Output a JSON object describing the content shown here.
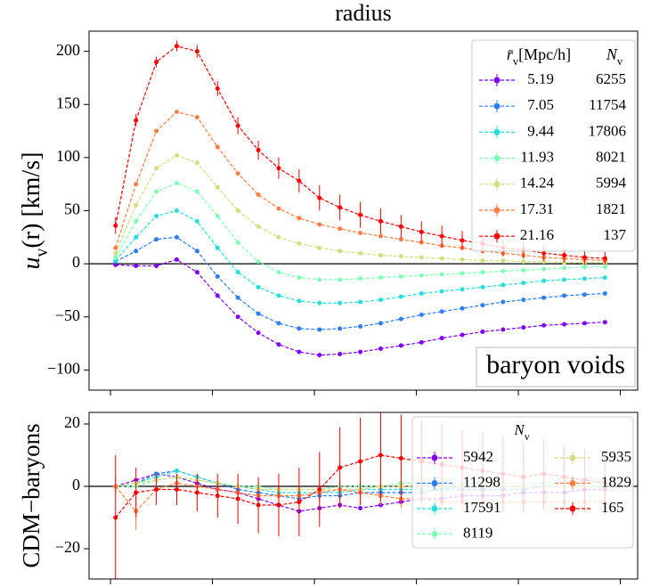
{
  "chart_data": [
    {
      "type": "line",
      "title": "radius",
      "y_label": [
        "u",
        "v",
        "(r) [km/s]"
      ],
      "legend_header": [
        [
          "r̄",
          "v",
          "[Mpc/h]"
        ],
        [
          "N",
          "v"
        ]
      ],
      "annotation": "baryon voids",
      "x": [
        0.05,
        0.25,
        0.45,
        0.65,
        0.85,
        1.05,
        1.25,
        1.45,
        1.65,
        1.85,
        2.05,
        2.25,
        2.45,
        2.65,
        2.85,
        3.05,
        3.25,
        3.45,
        3.65,
        3.85,
        4.05,
        4.25,
        4.45,
        4.65,
        4.85
      ],
      "xlim": [
        -0.21,
        5.17
      ],
      "xticks": [
        0,
        1,
        2,
        3,
        4,
        5
      ],
      "ylim": [
        -119,
        219
      ],
      "yticks": [
        {
          "value": -100,
          "label": "−100"
        },
        {
          "value": -50,
          "label": "−50"
        },
        0,
        50,
        100,
        150,
        200
      ],
      "series": [
        {
          "name": "5.19",
          "count": 6255,
          "color": "#8000ff",
          "values": [
            -1,
            -2,
            -2,
            4,
            -8,
            -30,
            -50,
            -65,
            -76,
            -83,
            -86,
            -85,
            -83,
            -80,
            -77,
            -74,
            -70,
            -67,
            -64,
            -62,
            -60,
            -58,
            -57,
            -56,
            -55
          ]
        },
        {
          "name": "7.05",
          "count": 11754,
          "color": "#2c7ef7",
          "values": [
            2,
            12,
            23,
            25,
            12,
            -12,
            -32,
            -47,
            -56,
            -61,
            -62,
            -61,
            -59,
            -56,
            -52,
            -48,
            -45,
            -42,
            -39,
            -36,
            -34,
            -32,
            -30,
            -29,
            -28
          ]
        },
        {
          "name": "9.44",
          "count": 17806,
          "color": "#2adddd",
          "values": [
            3,
            25,
            45,
            50,
            40,
            15,
            -8,
            -22,
            -30,
            -35,
            -37,
            -37,
            -36,
            -34,
            -31,
            -28,
            -26,
            -24,
            -22,
            -20,
            -18,
            -16,
            -15,
            -14,
            -13
          ]
        },
        {
          "name": "11.93",
          "count": 8021,
          "color": "#80ffb4",
          "values": [
            6,
            40,
            68,
            76,
            68,
            45,
            20,
            2,
            -8,
            -13,
            -15,
            -15,
            -14,
            -13,
            -12,
            -11,
            -10,
            -9,
            -8,
            -7,
            -6,
            -5,
            -4,
            -3,
            -3
          ]
        },
        {
          "name": "14.24",
          "count": 5994,
          "color": "#d4dd80",
          "values": [
            10,
            55,
            90,
            102,
            95,
            72,
            50,
            35,
            25,
            19,
            15,
            12,
            10,
            8,
            7,
            6,
            5,
            4,
            3,
            3,
            2,
            2,
            1,
            1,
            1
          ]
        },
        {
          "name": "17.31",
          "count": 1821,
          "color": "#ff7e41",
          "values": [
            15,
            75,
            125,
            143,
            138,
            110,
            85,
            65,
            52,
            43,
            37,
            33,
            29,
            26,
            23,
            20,
            17,
            15,
            12,
            10,
            8,
            6,
            5,
            4,
            3
          ]
        },
        {
          "name": "21.16",
          "count": 137,
          "color": "#ff0000",
          "values": [
            36,
            135,
            190,
            205,
            200,
            165,
            130,
            107,
            90,
            78,
            62,
            53,
            46,
            40,
            35,
            30,
            26,
            22,
            19,
            15,
            13,
            10,
            8,
            6,
            5
          ],
          "errors": [
            8,
            6,
            5,
            5,
            6,
            7,
            8,
            9,
            10,
            11,
            12,
            12,
            12,
            12,
            11,
            10,
            10,
            9,
            9,
            8,
            8,
            7,
            7,
            7,
            6
          ]
        }
      ]
    },
    {
      "type": "line",
      "y_label": "CDM−baryons",
      "legend_header": [
        [
          "N",
          "v"
        ]
      ],
      "x": [
        0.05,
        0.25,
        0.45,
        0.65,
        0.85,
        1.05,
        1.25,
        1.45,
        1.65,
        1.85,
        2.05,
        2.25,
        2.45,
        2.65,
        2.85,
        3.05,
        3.25,
        3.45,
        3.65,
        3.85,
        4.05,
        4.25,
        4.45,
        4.65,
        4.85
      ],
      "xlim": [
        -0.21,
        5.17
      ],
      "xticks": [
        0,
        1,
        2,
        3,
        4,
        5
      ],
      "ylim": [
        -29.7,
        23.7
      ],
      "yticks": [
        {
          "value": -20,
          "label": "−20"
        },
        0,
        20
      ],
      "series": [
        {
          "name": "5942",
          "color": "#8000ff",
          "values": [
            0,
            2,
            4,
            3,
            1,
            -1,
            -2,
            -4,
            -6,
            -8,
            -7,
            -6,
            -7,
            -6,
            -5,
            -4,
            -4,
            -3,
            -3,
            -3,
            -2,
            -2,
            -2,
            -1,
            -1
          ]
        },
        {
          "name": "11298",
          "color": "#2c7ef7",
          "values": [
            0,
            1,
            4,
            5,
            3,
            1,
            -1,
            -2,
            -3,
            -4,
            -3,
            -3,
            -2,
            -2,
            -2,
            -2,
            -1,
            -1,
            -1,
            -1,
            -1,
            0,
            0,
            0,
            0
          ]
        },
        {
          "name": "17591",
          "color": "#2adddd",
          "values": [
            0,
            1,
            3,
            5,
            3,
            1,
            0,
            -1,
            -2,
            -2,
            -2,
            -2,
            -1,
            -1,
            -1,
            -1,
            -1,
            0,
            0,
            0,
            0,
            0,
            0,
            0,
            0
          ]
        },
        {
          "name": "8119",
          "color": "#80ffb4",
          "values": [
            0,
            0,
            2,
            3,
            2,
            1,
            0,
            0,
            -1,
            -1,
            -1,
            0,
            0,
            0,
            1,
            1,
            1,
            1,
            1,
            1,
            1,
            1,
            1,
            1,
            1
          ]
        },
        {
          "name": "5935",
          "color": "#d4dd80",
          "values": [
            0,
            1,
            2,
            3,
            2,
            1,
            0,
            -1,
            -1,
            -1,
            -1,
            -1,
            -1,
            0,
            0,
            0,
            0,
            0,
            0,
            0,
            0,
            0,
            0,
            0,
            0
          ]
        },
        {
          "name": "1829",
          "color": "#ff7e41",
          "values": [
            0,
            -8,
            -1,
            1,
            0,
            -1,
            -2,
            -3,
            -3,
            -3,
            -2,
            -1,
            -2,
            -3,
            -4,
            -4,
            -5,
            -5,
            -5,
            -5,
            -5,
            -5,
            -5,
            -5,
            -5
          ],
          "errors": [
            3,
            6,
            2,
            2,
            2,
            2,
            2,
            3,
            3,
            3,
            3,
            3,
            3,
            3,
            3,
            3,
            3,
            3,
            3,
            3,
            3,
            3,
            3,
            3,
            3
          ]
        },
        {
          "name": "165",
          "color": "#ff0000",
          "values": [
            -10,
            -2,
            -1,
            -1,
            -2,
            -3,
            -4,
            -6,
            -6,
            -5,
            -1,
            6,
            8,
            10,
            9,
            8,
            7,
            6,
            5,
            4,
            3,
            4,
            3,
            2,
            1
          ],
          "errors": [
            20,
            8,
            5,
            5,
            6,
            7,
            8,
            9,
            10,
            11,
            12,
            13,
            14,
            15,
            14,
            13,
            13,
            12,
            12,
            12,
            11,
            11,
            10,
            10,
            10
          ]
        }
      ]
    }
  ]
}
